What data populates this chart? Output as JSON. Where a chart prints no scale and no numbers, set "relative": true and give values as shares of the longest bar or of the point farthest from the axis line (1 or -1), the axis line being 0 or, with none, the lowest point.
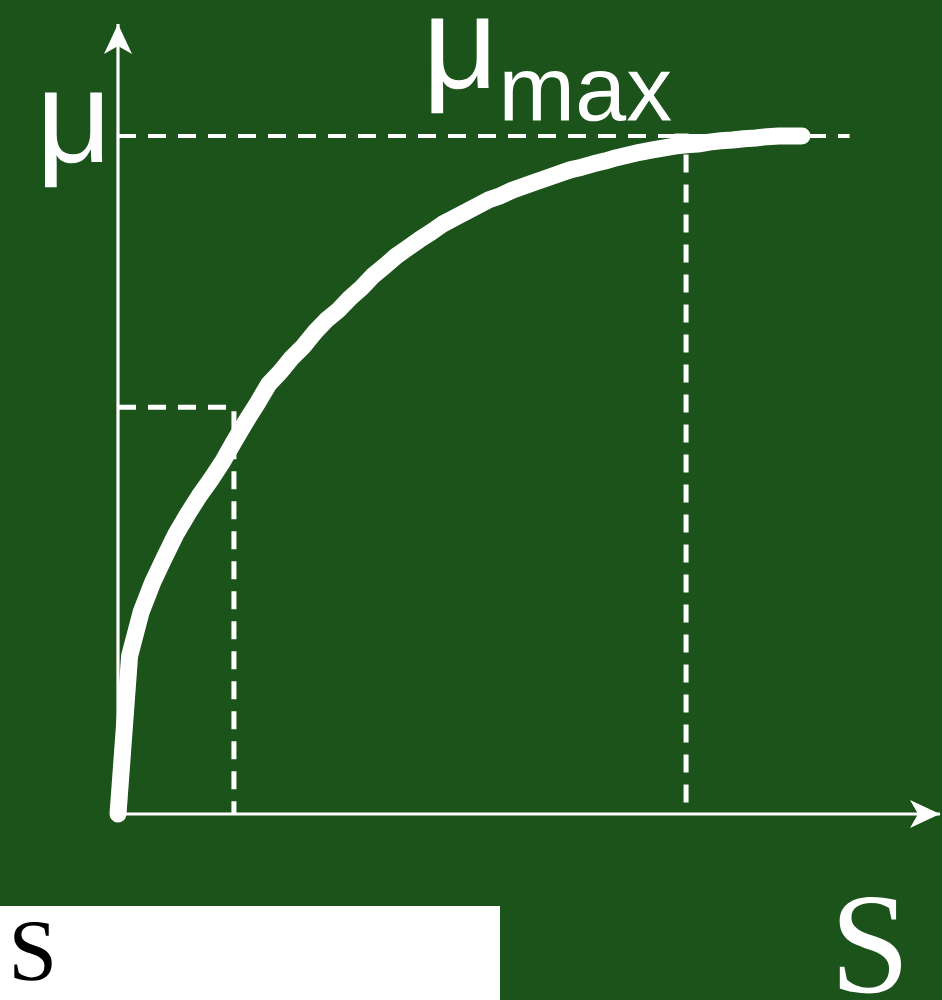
{
  "chart_data": {
    "type": "line",
    "relative": true,
    "xlabel": "S",
    "ylabel": "μ",
    "marker": "none",
    "categories": [
      null,
      null,
      null,
      null,
      null,
      null,
      null,
      null,
      null,
      null,
      null,
      null,
      null,
      null,
      null,
      null,
      null,
      null,
      null,
      null,
      null,
      null,
      null,
      null,
      null,
      null,
      null,
      null,
      null,
      null,
      null,
      null,
      null,
      null,
      null,
      null,
      null,
      null,
      null,
      null,
      null,
      null,
      null,
      null,
      null,
      null,
      null,
      null,
      null,
      null,
      null,
      null,
      null,
      null,
      null,
      null,
      null,
      null,
      null,
      null
    ],
    "series": [
      {
        "color": "#ffffff",
        "line_style": "solid",
        "values": [
          0,
          0.233,
          0.298,
          0.342,
          0.378,
          0.413,
          0.442,
          0.469,
          0.493,
          0.519,
          0.549,
          0.578,
          0.605,
          0.634,
          0.652,
          0.673,
          0.69,
          0.711,
          0.729,
          0.743,
          0.761,
          0.776,
          0.794,
          0.808,
          0.823,
          0.835,
          0.847,
          0.858,
          0.87,
          0.879,
          0.888,
          0.897,
          0.906,
          0.912,
          0.92,
          0.926,
          0.932,
          0.938,
          0.944,
          0.95,
          0.954,
          0.959,
          0.963,
          0.968,
          0.972,
          0.976,
          0.979,
          0.982,
          0.985,
          0.987,
          0.988,
          0.991,
          0.993,
          0.994,
          0.996,
          0.997,
          0.999,
          1,
          1,
          1
        ]
      },
      {
        "type": "step",
        "color": "#ffffff",
        "line_style": "dashed",
        "values": [
          0.6,
          0.6,
          0.6,
          0.6,
          0.6,
          0.6,
          0.6,
          0.6,
          0.6,
          0.6,
          0,
          null,
          null,
          null,
          null,
          null,
          null,
          null,
          null,
          null,
          null,
          null,
          null,
          null,
          null,
          null,
          null,
          null,
          null,
          null,
          null,
          null,
          null,
          null,
          null,
          null,
          null,
          null,
          null,
          null,
          null,
          null,
          null,
          null,
          null,
          null,
          null,
          null,
          null,
          null,
          null,
          null,
          null,
          null,
          null,
          null,
          null,
          null,
          null,
          null
        ]
      },
      {
        "type": "step",
        "color": "#ffffff",
        "line_style": "dashed",
        "values": [
          null,
          null,
          null,
          null,
          null,
          null,
          null,
          null,
          null,
          null,
          null,
          null,
          null,
          null,
          null,
          null,
          null,
          null,
          null,
          null,
          null,
          null,
          null,
          null,
          null,
          null,
          null,
          null,
          null,
          null,
          null,
          null,
          null,
          null,
          null,
          null,
          null,
          null,
          null,
          null,
          null,
          null,
          null,
          null,
          null,
          null,
          null,
          null,
          1,
          0,
          null,
          null,
          null,
          null,
          null,
          null,
          null,
          null,
          null,
          null
        ]
      }
    ],
    "ref_lines": [
      {
        "axis": "y",
        "value": 1,
        "label": "μ$_{max}$",
        "color": "#ffffff",
        "line_style": "dashed"
      }
    ],
    "annotations": [
      "S"
    ]
  }
}
